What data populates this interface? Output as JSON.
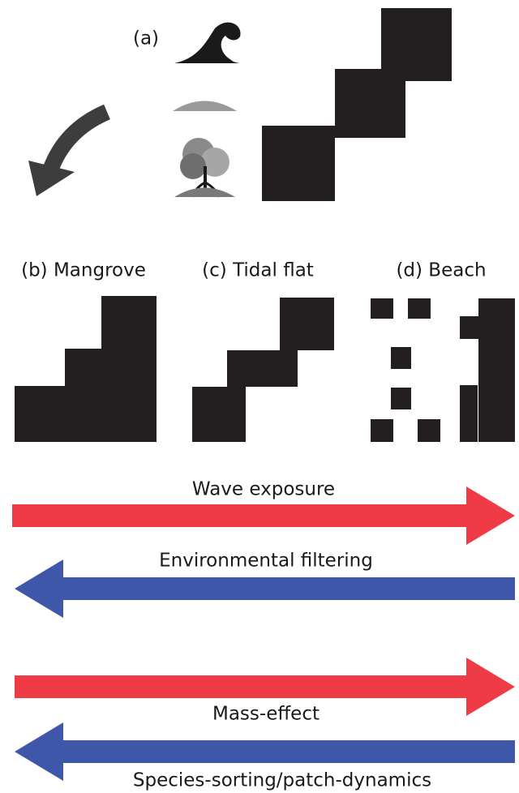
{
  "panels": {
    "a": "(a)",
    "b": "(b) Mangrove",
    "c": "(c) Tidal flat",
    "d": "(d) Beach"
  },
  "gradients": [
    "Wave exposure",
    "Environmental filtering",
    "Mass-effect",
    "Species-sorting/patch-dynamics"
  ]
}
